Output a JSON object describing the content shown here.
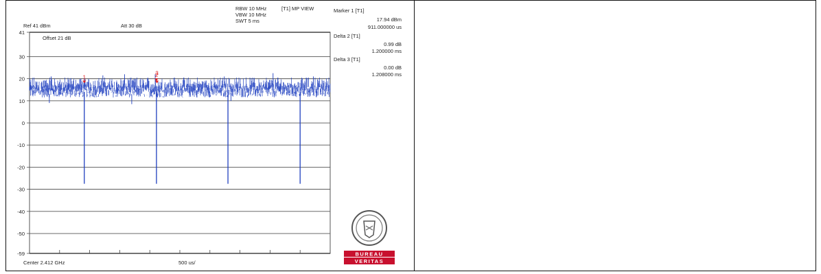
{
  "header": {
    "ref": "Ref 41 dBm",
    "att": "Att  30 dB",
    "rbw": "RBW 10 MHz",
    "vbw": "VBW 10 MHz",
    "swt": "SWT 5 ms",
    "view": "[T1] MP VIEW",
    "offset": "Offset 21 dB"
  },
  "markers": {
    "m1_title": "Marker 1 [T1]",
    "m1_level": "17.94 dBm",
    "m1_time": "911.000000 us",
    "d2_title": "Delta 2 [T1]",
    "d2_level": "0.99 dB",
    "d2_time": "1.200000 ms",
    "d3_title": "Delta 3 [T1]",
    "d3_level": "0.00 dB",
    "d3_time": "1.208000 ms"
  },
  "footer": {
    "center": "Center 2.412 GHz",
    "span_div": "500 us/"
  },
  "logo": {
    "line1": "BUREAU",
    "line2": "VERITAS",
    "red": "#c8102e"
  },
  "chart_data": {
    "type": "line",
    "xlabel": "",
    "ylabel": "",
    "xlim": [
      0,
      5
    ],
    "ylim": [
      -59,
      41
    ],
    "yticks": [
      41,
      30,
      20,
      10,
      0,
      -10,
      -20,
      -30,
      -40,
      -50,
      -59
    ],
    "x_unit": "ms",
    "series": [
      {
        "color": "#1f3fbf",
        "band_x": [
          0,
          5
        ],
        "band_level_range": [
          11.5,
          20.5
        ],
        "band_peaks": [
          {
            "x": 0.36,
            "y": 21
          },
          {
            "x": 1.22,
            "y": 21.5
          },
          {
            "x": 1.58,
            "y": 22
          },
          {
            "x": 2.09,
            "y": 22
          },
          {
            "x": 3.24,
            "y": 21
          },
          {
            "x": 4.05,
            "y": 22.5
          },
          {
            "x": 4.72,
            "y": 21
          }
        ],
        "band_dips": [
          {
            "x": 0.33,
            "y": 9
          },
          {
            "x": 1.7,
            "y": 8.5
          },
          {
            "x": 3.35,
            "y": 10
          }
        ],
        "dropouts": [
          {
            "x": 0.911,
            "y": -27.5
          },
          {
            "x": 2.111,
            "y": -27.5
          },
          {
            "x": 3.3,
            "y": -27.5
          },
          {
            "x": 4.5,
            "y": -27.5
          }
        ]
      }
    ],
    "markers": [
      {
        "label": "1",
        "x": 0.911,
        "y": 17.94,
        "color": "#e02020"
      },
      {
        "label": "2",
        "x": 2.111,
        "y": 18.9,
        "color": "#e02020"
      },
      {
        "label": "3",
        "x": 2.119,
        "y": 17.9,
        "color": "#e02020"
      }
    ]
  }
}
